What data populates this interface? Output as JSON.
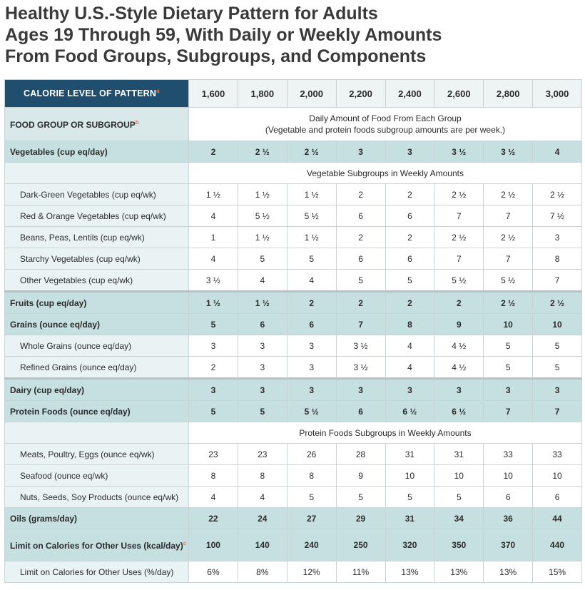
{
  "title": {
    "line1": "Healthy U.S.-Style Dietary Pattern for Adults",
    "line2": "Ages 19 Through 59, With Daily or Weekly Amounts",
    "line3": "From Food Groups, Subgroups, and Components"
  },
  "header": {
    "lead": "CALORIE LEVEL OF PATTERN",
    "lead_sup": "a",
    "calories": [
      "1,600",
      "1,800",
      "2,000",
      "2,200",
      "2,400",
      "2,600",
      "2,800",
      "3,000"
    ]
  },
  "food_group_row": {
    "label": "FOOD GROUP OR SUBGROUP",
    "label_sup": "b",
    "note_line1": "Daily Amount of Food From Each Group",
    "note_line2": "(Vegetable and protein foods subgroup amounts are per week.)"
  },
  "rows": [
    {
      "label": "Vegetables (cup eq/day)",
      "values": [
        "2",
        "2 ½",
        "2 ½",
        "3",
        "3",
        "3 ½",
        "3 ½",
        "4"
      ]
    },
    {
      "label": "",
      "note": "Vegetable Subgroups in Weekly Amounts"
    },
    {
      "label": "Dark-Green Vegetables (cup eq/wk)",
      "values": [
        "1 ½",
        "1 ½",
        "1 ½",
        "2",
        "2",
        "2 ½",
        "2 ½",
        "2 ½"
      ]
    },
    {
      "label": "Red & Orange Vegetables (cup eq/wk)",
      "values": [
        "4",
        "5 ½",
        "5 ½",
        "6",
        "6",
        "7",
        "7",
        "7 ½"
      ]
    },
    {
      "label": "Beans, Peas, Lentils (cup eq/wk)",
      "values": [
        "1",
        "1 ½",
        "1 ½",
        "2",
        "2",
        "2 ½",
        "2 ½",
        "3"
      ]
    },
    {
      "label": "Starchy Vegetables (cup eq/wk)",
      "values": [
        "4",
        "5",
        "5",
        "6",
        "6",
        "7",
        "7",
        "8"
      ]
    },
    {
      "label": "Other Vegetables (cup eq/wk)",
      "values": [
        "3 ½",
        "4",
        "4",
        "5",
        "5",
        "5 ½",
        "5 ½",
        "7"
      ]
    },
    {
      "label": "Fruits (cup eq/day)",
      "values": [
        "1 ½",
        "1 ½",
        "2",
        "2",
        "2",
        "2",
        "2 ½",
        "2 ½"
      ]
    },
    {
      "label": "Grains (ounce eq/day)",
      "values": [
        "5",
        "6",
        "6",
        "7",
        "8",
        "9",
        "10",
        "10"
      ]
    },
    {
      "label": "Whole Grains (ounce eq/day)",
      "values": [
        "3",
        "3",
        "3",
        "3 ½",
        "4",
        "4 ½",
        "5",
        "5"
      ]
    },
    {
      "label": "Refined Grains (ounce eq/day)",
      "values": [
        "2",
        "3",
        "3",
        "3 ½",
        "4",
        "4 ½",
        "5",
        "5"
      ]
    },
    {
      "label": "Dairy (cup eq/day)",
      "values": [
        "3",
        "3",
        "3",
        "3",
        "3",
        "3",
        "3",
        "3"
      ]
    },
    {
      "label": "Protein Foods (ounce eq/day)",
      "values": [
        "5",
        "5",
        "5 ½",
        "6",
        "6 ½",
        "6 ½",
        "7",
        "7"
      ]
    },
    {
      "label": "",
      "note": "Protein Foods Subgroups in Weekly Amounts"
    },
    {
      "label": "Meats, Poultry, Eggs (ounce eq/wk)",
      "values": [
        "23",
        "23",
        "26",
        "28",
        "31",
        "31",
        "33",
        "33"
      ]
    },
    {
      "label": "Seafood (ounce eq/wk)",
      "values": [
        "8",
        "8",
        "8",
        "9",
        "10",
        "10",
        "10",
        "10"
      ]
    },
    {
      "label": "Nuts, Seeds, Soy Products (ounce eq/wk)",
      "values": [
        "4",
        "4",
        "5",
        "5",
        "5",
        "5",
        "6",
        "6"
      ]
    },
    {
      "label": "Oils (grams/day)",
      "values": [
        "22",
        "24",
        "27",
        "29",
        "31",
        "34",
        "36",
        "44"
      ]
    },
    {
      "label": "Limit on Calories for Other Uses (kcal/day)",
      "label_sup": "c",
      "values": [
        "100",
        "140",
        "240",
        "250",
        "320",
        "350",
        "370",
        "440"
      ]
    },
    {
      "label": "Limit on Calories for Other Uses (%/day)",
      "values": [
        "6%",
        "8%",
        "12%",
        "11%",
        "13%",
        "13%",
        "13%",
        "15%"
      ]
    }
  ],
  "colors": {
    "header_lead_bg": "#1f4e6e",
    "group_row_bg": "#c6dfe0",
    "footnote_marker": "#e8764a"
  }
}
